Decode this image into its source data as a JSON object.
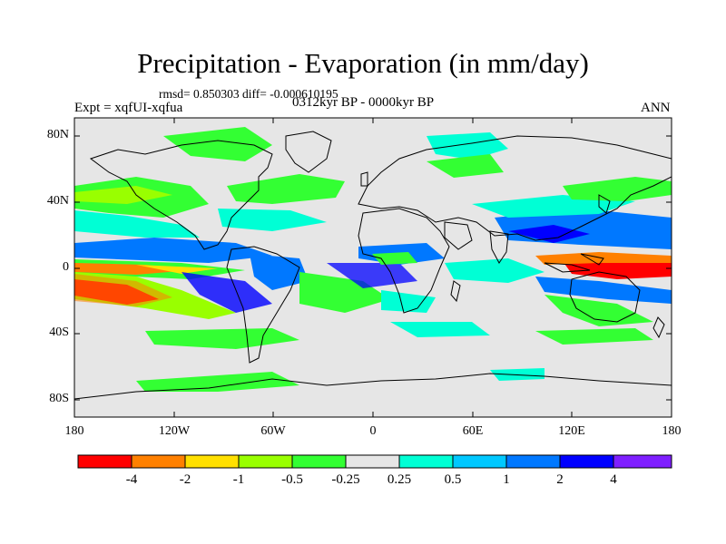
{
  "title": "Precipitation - Evaporation (in mm/day)",
  "stats": "rmsd= 0.850303  diff= -0.000610195",
  "experiment": "Expt = xqfUI-xqfua",
  "period": "0312kyr BP - 0000kyr BP",
  "season": "ANN",
  "lat_labels": [
    "80N",
    "40N",
    "0",
    "40S",
    "80S"
  ],
  "lon_labels": [
    "180",
    "120W",
    "60W",
    "0",
    "60E",
    "120E",
    "180"
  ],
  "colorbar": {
    "labels": [
      "-4",
      "-2",
      "-1",
      "-0.5",
      "-0.25",
      "0.25",
      "0.5",
      "1",
      "2",
      "4"
    ],
    "colors": [
      "#ff0000",
      "#ff8000",
      "#ffe000",
      "#f0ff00",
      "#99ff00",
      "#33ff33",
      "#e6e6e6",
      "#00ffd5",
      "#00c8ff",
      "#0078ff",
      "#0000ff",
      "#7f1fff"
    ]
  },
  "map_colors": {
    "background": "#e6e6e6",
    "coastline": "#000000"
  }
}
